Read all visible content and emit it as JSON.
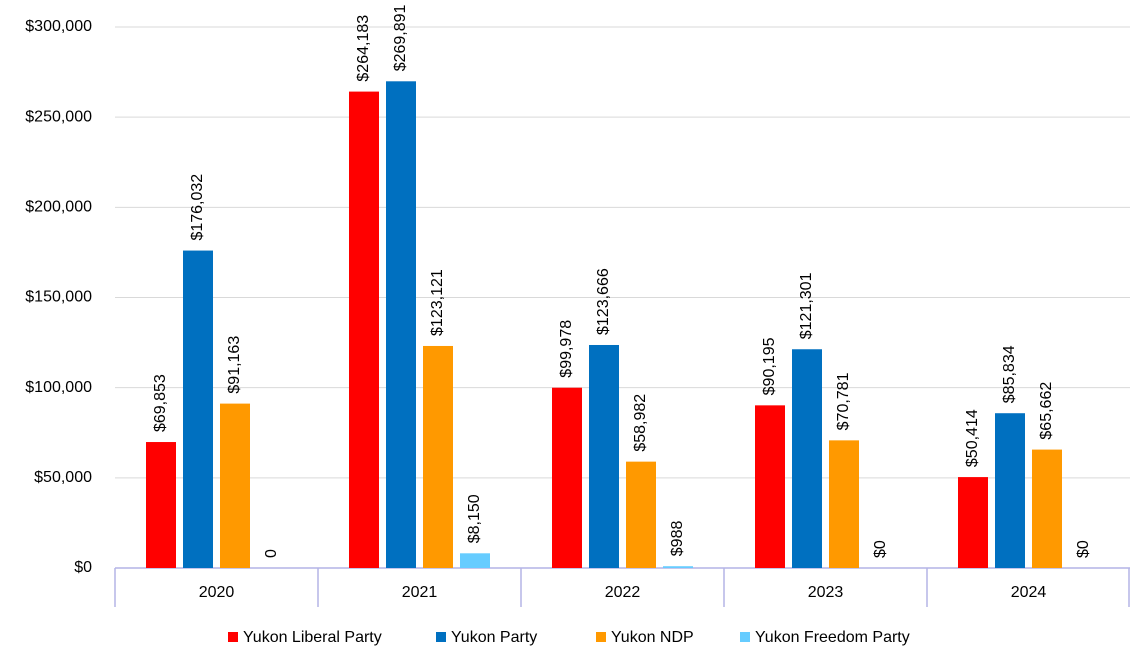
{
  "chart_data": {
    "type": "bar",
    "categories": [
      "2020",
      "2021",
      "2022",
      "2023",
      "2024"
    ],
    "series": [
      {
        "name": "Yukon Liberal Party",
        "color": "#ff0000",
        "values": [
          69853,
          264183,
          99978,
          90195,
          50414
        ],
        "value_labels": [
          "$69,853",
          "$264,183",
          "$99,978",
          "$90,195",
          "$50,414"
        ]
      },
      {
        "name": "Yukon Party",
        "color": "#0070c0",
        "values": [
          176032,
          269891,
          123666,
          121301,
          85834
        ],
        "value_labels": [
          "$176,032",
          "$269,891",
          "$123,666",
          "$121,301",
          "$85,834"
        ]
      },
      {
        "name": "Yukon NDP",
        "color": "#ff9900",
        "values": [
          91163,
          123121,
          58982,
          70781,
          65662
        ],
        "value_labels": [
          "$91,163",
          "$123,121",
          "$58,982",
          "$70,781",
          "$65,662"
        ]
      },
      {
        "name": "Yukon Freedom Party",
        "color": "#66ccff",
        "values": [
          0,
          8150,
          988,
          0,
          0
        ],
        "value_labels": [
          "0",
          "$8,150",
          "$988",
          "$0",
          "$0"
        ]
      }
    ],
    "ylim": [
      0,
      300000
    ],
    "yticks": [
      {
        "value": 0,
        "label": "$0"
      },
      {
        "value": 50000,
        "label": "$50,000"
      },
      {
        "value": 100000,
        "label": "$100,000"
      },
      {
        "value": 150000,
        "label": "$150,000"
      },
      {
        "value": 200000,
        "label": "$200,000"
      },
      {
        "value": 250000,
        "label": "$250,000"
      },
      {
        "value": 300000,
        "label": "$300,000"
      }
    ],
    "grid": true,
    "legend": "bottom"
  }
}
